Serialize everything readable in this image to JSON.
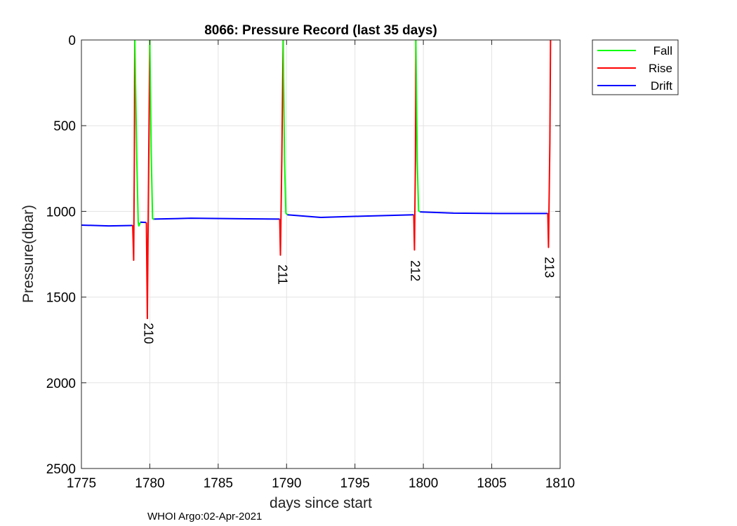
{
  "footer_text": "WHOI Argo:02-Apr-2021",
  "chart_data": {
    "type": "line",
    "title": "8066: Pressure Record (last 35 days)",
    "xlabel": "days since start",
    "ylabel": "Pressure(dbar)",
    "xlim": [
      1775,
      1810
    ],
    "ylim": [
      0,
      2500
    ],
    "y_reversed": true,
    "grid": true,
    "x_ticks": [
      1775,
      1780,
      1785,
      1790,
      1795,
      1800,
      1805,
      1810
    ],
    "y_ticks": [
      0,
      500,
      1000,
      1500,
      2000,
      2500
    ],
    "legend_position": "outside-top-right",
    "series": [
      {
        "name": "Fall",
        "color": "#00ff00",
        "segments": [
          [
            [
              1778.9,
              0
            ],
            [
              1779.05,
              700
            ],
            [
              1779.15,
              1060
            ],
            [
              1779.2,
              1085
            ],
            [
              1779.3,
              1065
            ]
          ],
          [
            [
              1780.0,
              0
            ],
            [
              1780.1,
              650
            ],
            [
              1780.2,
              1040
            ],
            [
              1780.3,
              1048
            ]
          ],
          [
            [
              1789.75,
              0
            ],
            [
              1789.85,
              700
            ],
            [
              1789.95,
              1010
            ],
            [
              1790.05,
              1020
            ]
          ],
          [
            [
              1799.45,
              0
            ],
            [
              1799.55,
              700
            ],
            [
              1799.65,
              995
            ],
            [
              1799.75,
              1003
            ]
          ]
        ]
      },
      {
        "name": "Rise",
        "color": "#ff0000",
        "segments": [
          [
            [
              1778.75,
              1080
            ],
            [
              1778.82,
              1285
            ],
            [
              1778.87,
              700
            ],
            [
              1778.9,
              0
            ]
          ],
          [
            [
              1779.75,
              1065
            ],
            [
              1779.82,
              1625
            ],
            [
              1779.92,
              700
            ],
            [
              1780.0,
              0
            ]
          ],
          [
            [
              1789.5,
              1045
            ],
            [
              1789.55,
              1255
            ],
            [
              1789.65,
              700
            ],
            [
              1789.75,
              0
            ]
          ],
          [
            [
              1799.3,
              1020
            ],
            [
              1799.35,
              1225
            ],
            [
              1799.42,
              700
            ],
            [
              1799.45,
              0
            ]
          ],
          [
            [
              1809.1,
              1010
            ],
            [
              1809.15,
              1210
            ],
            [
              1809.25,
              600
            ],
            [
              1809.3,
              0
            ]
          ]
        ]
      },
      {
        "name": "Drift",
        "color": "#0000ff",
        "segments": [
          [
            [
              1775.0,
              1080
            ],
            [
              1777.0,
              1085
            ],
            [
              1778.75,
              1082
            ]
          ],
          [
            [
              1779.3,
              1063
            ],
            [
              1779.75,
              1065
            ]
          ],
          [
            [
              1780.3,
              1045
            ],
            [
              1783.0,
              1040
            ],
            [
              1786.5,
              1043
            ],
            [
              1789.5,
              1045
            ]
          ],
          [
            [
              1790.05,
              1020
            ],
            [
              1792.5,
              1035
            ],
            [
              1795.5,
              1028
            ],
            [
              1799.3,
              1020
            ]
          ],
          [
            [
              1799.75,
              1003
            ],
            [
              1802.2,
              1010
            ],
            [
              1805.5,
              1012
            ],
            [
              1809.1,
              1012
            ]
          ]
        ]
      }
    ],
    "annotations": [
      {
        "text": "210",
        "x": 1779.9,
        "y": 1650,
        "rotation": 90
      },
      {
        "text": "211",
        "x": 1789.7,
        "y": 1310,
        "rotation": 90
      },
      {
        "text": "212",
        "x": 1799.4,
        "y": 1285,
        "rotation": 90
      },
      {
        "text": "213",
        "x": 1809.2,
        "y": 1265,
        "rotation": 90
      }
    ]
  }
}
